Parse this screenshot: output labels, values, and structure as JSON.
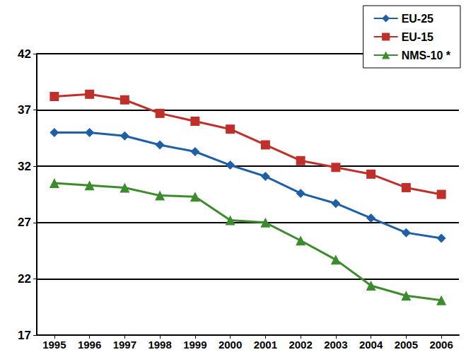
{
  "chart_data": {
    "type": "line",
    "categories": [
      "1995",
      "1996",
      "1997",
      "1998",
      "1999",
      "2000",
      "2001",
      "2002",
      "2003",
      "2004",
      "2005",
      "2006"
    ],
    "series": [
      {
        "name": "EU-25",
        "color": "#1f5fa8",
        "marker": "diamond",
        "values": [
          35.0,
          35.0,
          34.7,
          33.9,
          33.3,
          32.1,
          31.1,
          29.6,
          28.7,
          27.4,
          26.1,
          25.6
        ]
      },
      {
        "name": "EU-15",
        "color": "#c0302b",
        "marker": "square",
        "values": [
          38.2,
          38.4,
          37.9,
          36.7,
          36.0,
          35.3,
          33.9,
          32.5,
          31.9,
          31.3,
          30.1,
          29.5
        ]
      },
      {
        "name": "NMS-10 *",
        "color": "#3c8c2e",
        "marker": "triangle",
        "values": [
          30.5,
          30.3,
          30.1,
          29.4,
          29.3,
          27.2,
          27.0,
          25.4,
          23.7,
          21.4,
          20.5,
          20.1
        ]
      }
    ],
    "ylim": [
      17,
      42
    ],
    "yticks": [
      17,
      22,
      27,
      32,
      37,
      42
    ],
    "grid": true,
    "legend": "upper right"
  }
}
